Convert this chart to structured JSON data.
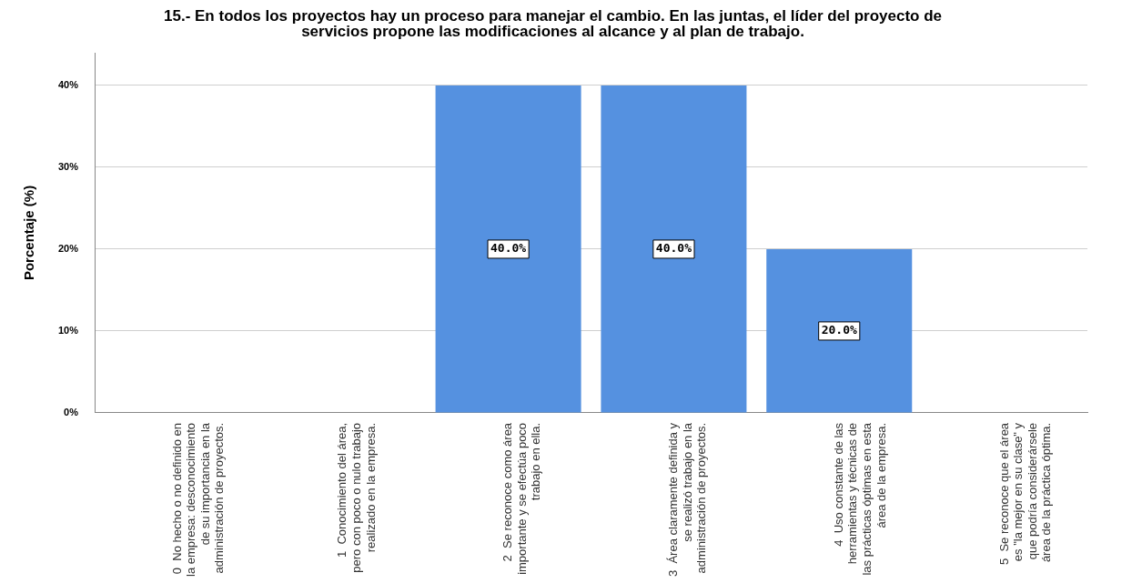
{
  "chart_data": {
    "type": "bar",
    "title": "15.- En todos los proyectos hay un proceso para manejar el cambio. En las juntas, el líder del proyecto de\nservicios propone las modificaciones al alcance y al plan de trabajo.",
    "ylabel": "Porcentaje (%)",
    "categories": [
      "0  No hecho o no definido en\nla empresa: desconocimiento\nde su importancia en la\nadministración de proyectos.",
      "1  Conocimiento del área,\npero con poco o nulo trabajo\nrealizado en la empresa.",
      "2  Se reconoce como área\nimportante y se efectúa poco\ntrabajo en ella.",
      "3  Área claramente definida y\nse realizó trabajo en la\nadministración de proyectos.",
      "4  Uso constante de las\nherramientas y técnicas de\nlas prácticas óptimas en esta\nárea de la empresa.",
      "5  Se reconoce que el área\nes \"la mejor en su clase\" y\nque podría considerársele\nárea de la práctica óptima."
    ],
    "values": [
      0,
      0,
      40,
      40,
      20,
      0
    ],
    "value_labels": [
      null,
      null,
      "40.0%",
      "40.0%",
      "20.0%",
      null
    ],
    "color": "#5591e0",
    "ylim": [
      0,
      44
    ],
    "yticks": [
      {
        "value": 0,
        "label": "0%"
      },
      {
        "value": 10,
        "label": "10%"
      },
      {
        "value": 20,
        "label": "20%"
      },
      {
        "value": 30,
        "label": "30%"
      },
      {
        "value": 40,
        "label": "40%"
      }
    ],
    "grid": "y",
    "legend": false
  }
}
